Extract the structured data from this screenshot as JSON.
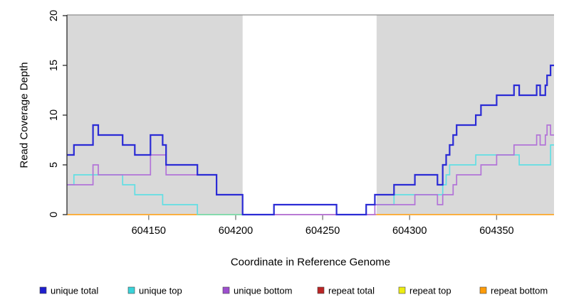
{
  "chart_data": {
    "type": "line",
    "subtype": "step-coverage-plot",
    "title": "",
    "xlabel": "Coordinate in Reference Genome",
    "ylabel": "Read Coverage Depth",
    "xlim": [
      604103,
      604383
    ],
    "ylim": [
      0,
      20
    ],
    "x_ticks": [
      604150,
      604200,
      604250,
      604300,
      604350
    ],
    "y_ticks": [
      0,
      5,
      10,
      15,
      20
    ],
    "grid": false,
    "shade_color": "#d9d9d9",
    "shaded_regions": [
      {
        "from": 604103,
        "to": 604204
      },
      {
        "from": 604281,
        "to": 604383
      }
    ],
    "gap_region": {
      "from": 604204,
      "to": 604281
    },
    "series": [
      {
        "name": "unique total",
        "color": "#2b2bd5",
        "legend_color": "#1f1fce",
        "width": 2.2,
        "steps": [
          [
            604103,
            6
          ],
          [
            604107,
            7
          ],
          [
            604118,
            9
          ],
          [
            604121,
            8
          ],
          [
            604135,
            7
          ],
          [
            604142,
            6
          ],
          [
            604151,
            8
          ],
          [
            604158,
            7
          ],
          [
            604160,
            5
          ],
          [
            604178,
            4
          ],
          [
            604189,
            2
          ],
          [
            604204,
            0
          ],
          [
            604222,
            1
          ],
          [
            604258,
            0
          ],
          [
            604275,
            1
          ],
          [
            604280,
            2
          ],
          [
            604291,
            3
          ],
          [
            604303,
            4
          ],
          [
            604316,
            3
          ],
          [
            604319,
            5
          ],
          [
            604321,
            6
          ],
          [
            604323,
            7
          ],
          [
            604325,
            8
          ],
          [
            604327,
            9
          ],
          [
            604338,
            10
          ],
          [
            604341,
            11
          ],
          [
            604350,
            12
          ],
          [
            604360,
            13
          ],
          [
            604363,
            12
          ],
          [
            604373,
            13
          ],
          [
            604375,
            12
          ],
          [
            604378,
            13
          ],
          [
            604379,
            14
          ],
          [
            604381,
            15
          ]
        ]
      },
      {
        "name": "unique top",
        "color": "#62dfe4",
        "legend_color": "#3ad3da",
        "width": 1.7,
        "steps": [
          [
            604103,
            3
          ],
          [
            604107,
            4
          ],
          [
            604135,
            3
          ],
          [
            604142,
            2
          ],
          [
            604158,
            1
          ],
          [
            604178,
            0
          ],
          [
            604222,
            1
          ],
          [
            604258,
            0
          ],
          [
            604275,
            1
          ],
          [
            604291,
            2
          ],
          [
            604319,
            3
          ],
          [
            604321,
            4
          ],
          [
            604323,
            5
          ],
          [
            604338,
            6
          ],
          [
            604363,
            5
          ],
          [
            604381,
            7
          ]
        ]
      },
      {
        "name": "unique bottom",
        "color": "#b273d8",
        "legend_color": "#9d4fce",
        "width": 1.7,
        "steps": [
          [
            604103,
            3
          ],
          [
            604118,
            5
          ],
          [
            604121,
            4
          ],
          [
            604151,
            6
          ],
          [
            604160,
            4
          ],
          [
            604189,
            2
          ],
          [
            604204,
            0
          ],
          [
            604280,
            1
          ],
          [
            604303,
            2
          ],
          [
            604316,
            1
          ],
          [
            604319,
            2
          ],
          [
            604325,
            3
          ],
          [
            604327,
            4
          ],
          [
            604341,
            5
          ],
          [
            604350,
            6
          ],
          [
            604360,
            7
          ],
          [
            604373,
            8
          ],
          [
            604375,
            7
          ],
          [
            604378,
            8
          ],
          [
            604379,
            9
          ],
          [
            604381,
            8
          ]
        ]
      },
      {
        "name": "repeat total",
        "color": "#d4657b",
        "legend_color": "#bb2525",
        "width": 1.4,
        "steps": [
          [
            604103,
            0
          ]
        ]
      },
      {
        "name": "repeat top",
        "color": "#eded12",
        "legend_color": "#eded12",
        "width": 1.4,
        "steps": [
          [
            604103,
            0
          ]
        ]
      },
      {
        "name": "repeat bottom",
        "color": "#ff9c09",
        "legend_color": "#ff9c09",
        "width": 1.7,
        "steps": [
          [
            604103,
            0
          ]
        ]
      }
    ],
    "baseline_segments": [
      {
        "from": 604204,
        "to": 604281,
        "color": "#d4657b",
        "layer": "under",
        "meaning": "repeat total visible in gap"
      },
      {
        "from": 604103,
        "to": 604178,
        "color": "#ff9c09",
        "layer": "under",
        "meaning": "repeat bottom visible"
      },
      {
        "from": 604281,
        "to": 604383,
        "color": "#ff9c09",
        "layer": "under",
        "meaning": "repeat bottom visible"
      },
      {
        "from": 604178,
        "to": 604204,
        "color": "#86d79b",
        "layer": "over",
        "meaning": "repeat top over unique top blend"
      }
    ],
    "legend": [
      {
        "label": "unique total",
        "color": "#1f1fce"
      },
      {
        "label": "unique top",
        "color": "#3ad3da"
      },
      {
        "label": "unique bottom",
        "color": "#9d4fce"
      },
      {
        "label": "repeat total",
        "color": "#bb2525"
      },
      {
        "label": "repeat top",
        "color": "#eded12"
      },
      {
        "label": "repeat bottom",
        "color": "#ff9c09"
      }
    ],
    "legend_position": "bottom"
  }
}
